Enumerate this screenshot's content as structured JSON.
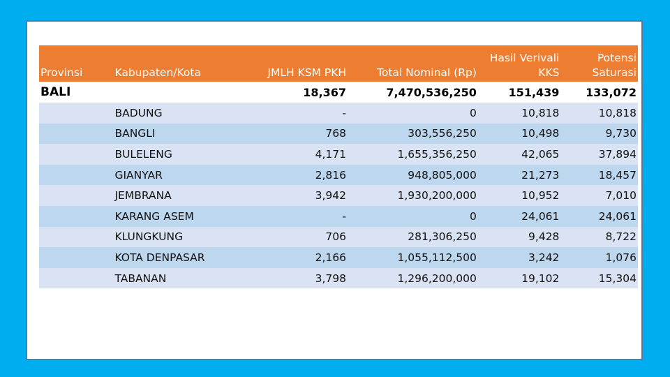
{
  "table": {
    "headers": {
      "provinsi": "Provinsi",
      "kabupaten": "Kabupaten/Kota",
      "jmlh": "JMLH KSM PKH",
      "total": "Total Nominal (Rp)",
      "hasil": "Hasil Verivali KKS",
      "potensi": "Potensi Saturasi"
    },
    "province": {
      "name": "BALI",
      "jmlh": "18,367",
      "total": "7,470,536,250",
      "hasil": "151,439",
      "potensi": "133,072"
    },
    "rows": [
      {
        "kab": "BADUNG",
        "jmlh": "-",
        "total": "0",
        "hasil": "10,818",
        "potensi": "10,818"
      },
      {
        "kab": "BANGLI",
        "jmlh": "768",
        "total": "303,556,250",
        "hasil": "10,498",
        "potensi": "9,730"
      },
      {
        "kab": "BULELENG",
        "jmlh": "4,171",
        "total": "1,655,356,250",
        "hasil": "42,065",
        "potensi": "37,894"
      },
      {
        "kab": "GIANYAR",
        "jmlh": "2,816",
        "total": "948,805,000",
        "hasil": "21,273",
        "potensi": "18,457"
      },
      {
        "kab": "JEMBRANA",
        "jmlh": "3,942",
        "total": "1,930,200,000",
        "hasil": "10,952",
        "potensi": "7,010"
      },
      {
        "kab": "KARANG ASEM",
        "jmlh": "-",
        "total": "0",
        "hasil": "24,061",
        "potensi": "24,061"
      },
      {
        "kab": "KLUNGKUNG",
        "jmlh": "706",
        "total": "281,306,250",
        "hasil": "9,428",
        "potensi": "8,722"
      },
      {
        "kab": "KOTA DENPASAR",
        "jmlh": "2,166",
        "total": "1,055,112,500",
        "hasil": "3,242",
        "potensi": "1,076"
      },
      {
        "kab": "TABANAN",
        "jmlh": "3,798",
        "total": "1,296,200,000",
        "hasil": "19,102",
        "potensi": "15,304"
      }
    ]
  },
  "colors": {
    "background": "#00adef",
    "header": "#ed7d31",
    "row_light": "#dae3f3",
    "row_mid": "#bdd7ee"
  }
}
